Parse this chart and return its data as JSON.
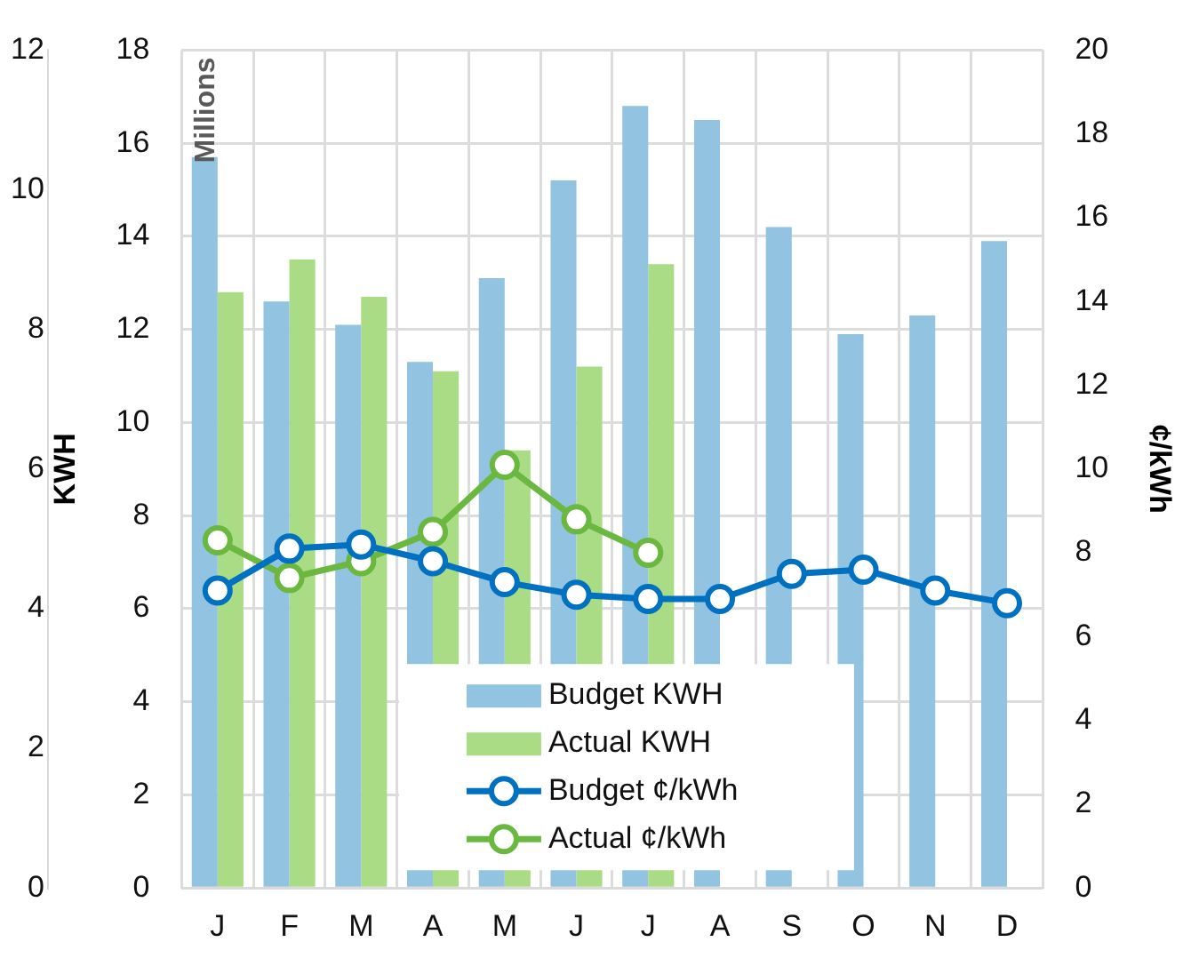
{
  "chart_data": {
    "type": "bar",
    "ylabel": "KWH",
    "y2label": "¢/kWh",
    "annotations": [
      "Millions"
    ],
    "categories": [
      "J",
      "F",
      "M",
      "A",
      "M",
      "J",
      "J",
      "A",
      "S",
      "O",
      "N",
      "D"
    ],
    "series": [
      {
        "name": "Budget KWH",
        "color": "#92c3e0",
        "values": [
          15.7,
          12.6,
          12.1,
          11.3,
          13.1,
          15.2,
          16.8,
          16.5,
          14.2,
          11.9,
          12.3,
          13.9
        ]
      },
      {
        "name": "Actual KWH",
        "color": "#a9dc84",
        "values": [
          12.8,
          13.5,
          12.7,
          11.1,
          9.4,
          11.2,
          13.4,
          null,
          null,
          null,
          null,
          null
        ]
      },
      {
        "name": "Budget ¢/kWh",
        "type": "line",
        "axis": "y2",
        "color": "#0070c0",
        "values": [
          7.1,
          8.1,
          8.2,
          7.8,
          7.3,
          7.0,
          6.9,
          6.9,
          7.5,
          7.6,
          7.1,
          6.8
        ]
      },
      {
        "name": "Actual ¢/kWh",
        "type": "line",
        "axis": "y2",
        "color": "#6ab83f",
        "values": [
          8.3,
          7.4,
          7.8,
          8.5,
          10.1,
          8.8,
          8.0,
          null,
          null,
          null,
          null,
          null
        ]
      }
    ],
    "ylim": [
      0,
      18
    ],
    "yticks": [
      0,
      2,
      4,
      6,
      8,
      10,
      12,
      14,
      16,
      18
    ],
    "y2lim": [
      0,
      20
    ],
    "y2ticks": [
      0,
      2,
      4,
      6,
      8,
      10,
      12,
      14,
      16,
      18,
      20
    ],
    "y3lim": [
      0,
      12
    ],
    "y3ticks": [
      0,
      2,
      4,
      6,
      8,
      10,
      12
    ],
    "grid": true,
    "legend": "bottom",
    "marker": "circle",
    "line_style": "solid"
  }
}
